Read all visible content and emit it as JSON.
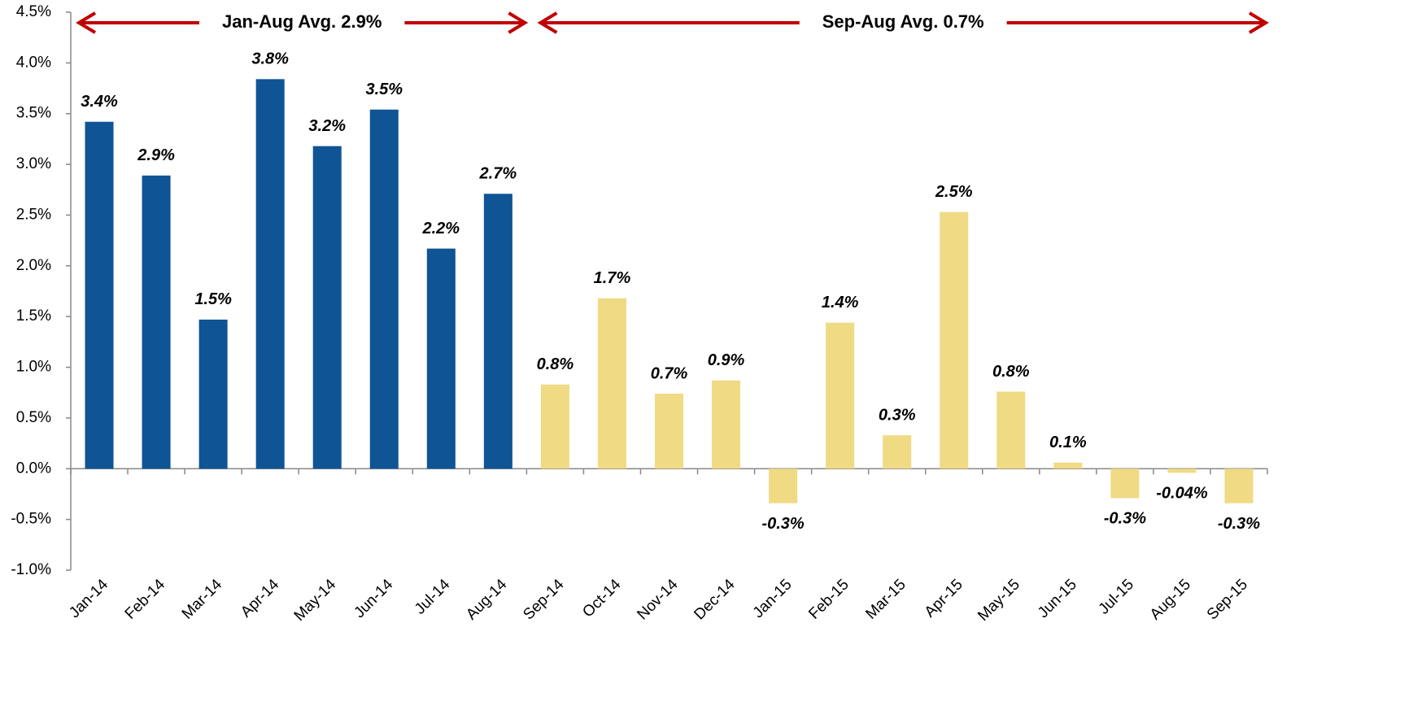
{
  "chart_data": {
    "type": "bar",
    "categories": [
      "Jan-14",
      "Feb-14",
      "Mar-14",
      "Apr-14",
      "May-14",
      "Jun-14",
      "Jul-14",
      "Aug-14",
      "Sep-14",
      "Oct-14",
      "Nov-14",
      "Dec-14",
      "Jan-15",
      "Feb-15",
      "Mar-15",
      "Apr-15",
      "May-15",
      "Jun-15",
      "Jul-15",
      "Aug-15",
      "Sep-15"
    ],
    "values": [
      3.42,
      2.89,
      1.47,
      3.84,
      3.18,
      3.54,
      2.17,
      2.71,
      0.83,
      1.68,
      0.74,
      0.87,
      -0.34,
      1.44,
      0.33,
      2.53,
      0.76,
      0.06,
      -0.29,
      -0.04,
      -0.34
    ],
    "value_labels": [
      "3.4%",
      "2.9%",
      "1.5%",
      "3.8%",
      "3.2%",
      "3.5%",
      "2.2%",
      "2.7%",
      "0.8%",
      "1.7%",
      "0.7%",
      "0.9%",
      "-0.3%",
      "1.4%",
      "0.3%",
      "2.5%",
      "0.8%",
      "0.1%",
      "-0.3%",
      "-0.04%",
      "-0.3%"
    ],
    "colors": [
      "#0f5494",
      "#0f5494",
      "#0f5494",
      "#0f5494",
      "#0f5494",
      "#0f5494",
      "#0f5494",
      "#0f5494",
      "#f0da84",
      "#f0da84",
      "#f0da84",
      "#f0da84",
      "#f0da84",
      "#f0da84",
      "#f0da84",
      "#f0da84",
      "#f0da84",
      "#f0da84",
      "#f0da84",
      "#f0da84",
      "#f0da84"
    ],
    "ylim": [
      -1.0,
      4.5
    ],
    "yticks": [
      {
        "value": -1.0,
        "label": "-1.0%"
      },
      {
        "value": -0.5,
        "label": "-0.5%"
      },
      {
        "value": 0,
        "label": "0.0%"
      },
      {
        "value": 0.5,
        "label": "0.5%"
      },
      {
        "value": 1.0,
        "label": "1.0%"
      },
      {
        "value": 1.5,
        "label": "1.5%"
      },
      {
        "value": 2.0,
        "label": "2.0%"
      },
      {
        "value": 2.5,
        "label": "2.5%"
      },
      {
        "value": 3.0,
        "label": "3.0%"
      },
      {
        "value": 3.5,
        "label": "3.5%"
      },
      {
        "value": 4.0,
        "label": "4.0%"
      },
      {
        "value": 4.5,
        "label": "4.5%"
      }
    ],
    "grid": false,
    "annotations": [
      {
        "text": "Jan-Aug Avg. 2.9%",
        "start": "Jan-14",
        "end": "Aug-14",
        "color": "#c00000"
      },
      {
        "text": "Sep-Aug Avg. 0.7%",
        "start": "Sep-14",
        "end": "Sep-15",
        "color": "#c00000"
      }
    ]
  }
}
